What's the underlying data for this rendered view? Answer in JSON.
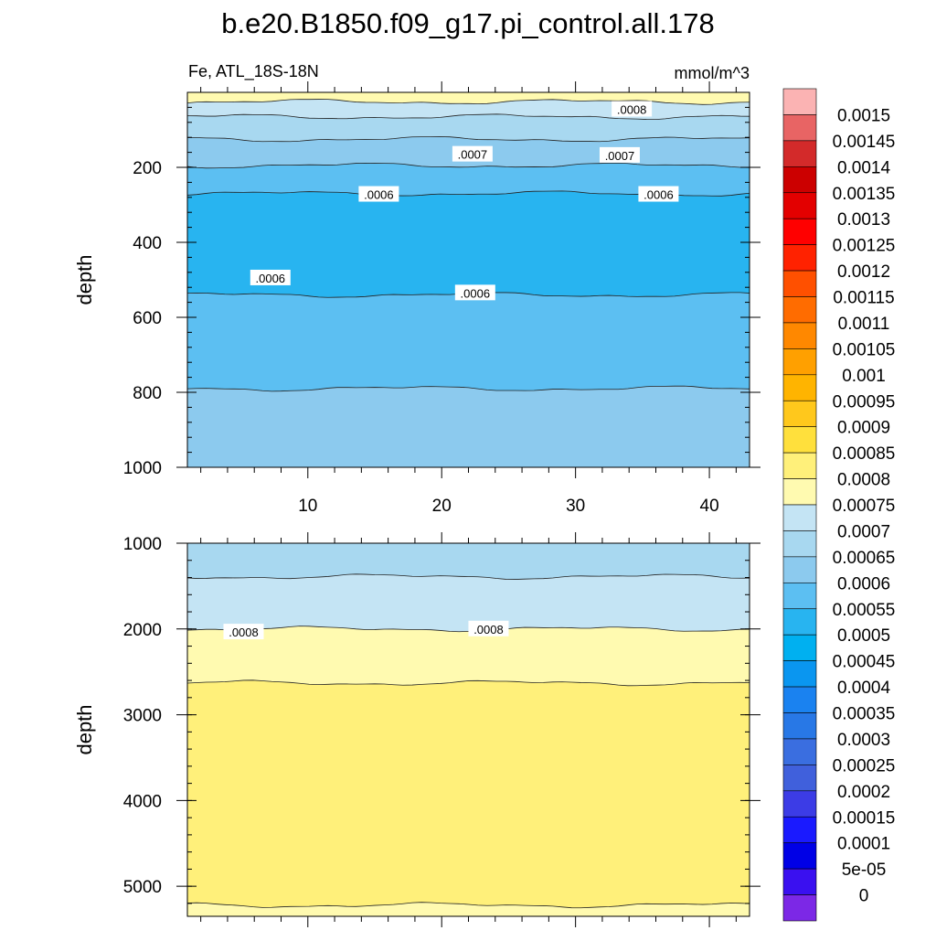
{
  "chart_data": {
    "type": "contour",
    "title": "b.e20.B1850.f09_g17.pi_control.all.178",
    "variable_label": "Fe, ATL_18S-18N",
    "units_label": "mmol/m^3",
    "ylabel": "depth",
    "xlim": [
      1,
      43
    ],
    "x_ticks": [
      10,
      20,
      30,
      40
    ],
    "panels": [
      {
        "name": "upper",
        "ylim": [
          0,
          1000
        ],
        "y_ticks": [
          200,
          400,
          600,
          800,
          1000
        ],
        "bands": [
          {
            "depth_top": 0,
            "depth_bottom": 25,
            "level": 0.0008
          },
          {
            "depth_top": 25,
            "depth_bottom": 65,
            "level": 0.00075
          },
          {
            "depth_top": 65,
            "depth_bottom": 125,
            "level": 0.0007
          },
          {
            "depth_top": 125,
            "depth_bottom": 195,
            "level": 0.00065
          },
          {
            "depth_top": 195,
            "depth_bottom": 270,
            "level": 0.0006
          },
          {
            "depth_top": 270,
            "depth_bottom": 540,
            "level": 0.00055
          },
          {
            "depth_top": 540,
            "depth_bottom": 790,
            "level": 0.0006
          },
          {
            "depth_top": 790,
            "depth_bottom": 1000,
            "level": 0.00065
          }
        ],
        "contour_labels": [
          {
            "text": ".0008",
            "x": 34.2,
            "depth": 45
          },
          {
            "text": ".0007",
            "x": 22.3,
            "depth": 165
          },
          {
            "text": ".0007",
            "x": 33.3,
            "depth": 168
          },
          {
            "text": ".0006",
            "x": 15.3,
            "depth": 272
          },
          {
            "text": ".0006",
            "x": 36.2,
            "depth": 272
          },
          {
            "text": ".0006",
            "x": 7.2,
            "depth": 495
          },
          {
            "text": ".0006",
            "x": 22.5,
            "depth": 535
          }
        ]
      },
      {
        "name": "lower",
        "ylim": [
          1000,
          5350
        ],
        "y_ticks": [
          1000,
          2000,
          3000,
          4000,
          5000
        ],
        "bands": [
          {
            "depth_top": 1000,
            "depth_bottom": 1390,
            "level": 0.0007
          },
          {
            "depth_top": 1390,
            "depth_bottom": 2000,
            "level": 0.00075
          },
          {
            "depth_top": 2000,
            "depth_bottom": 2630,
            "level": 0.0008
          },
          {
            "depth_top": 2630,
            "depth_bottom": 5220,
            "level": 0.00085
          },
          {
            "depth_top": 5220,
            "depth_bottom": 5350,
            "level": 0.0008
          }
        ],
        "contour_labels": [
          {
            "text": ".0008",
            "x": 5.2,
            "depth": 2035
          },
          {
            "text": ".0008",
            "x": 23.5,
            "depth": 2000
          }
        ]
      }
    ],
    "colorbar": {
      "labels": [
        "0.0015",
        "0.00145",
        "0.0014",
        "0.00135",
        "0.0013",
        "0.00125",
        "0.0012",
        "0.00115",
        "0.0011",
        "0.00105",
        "0.001",
        "0.00095",
        "0.0009",
        "0.00085",
        "0.0008",
        "0.00075",
        "0.0007",
        "0.00065",
        "0.0006",
        "0.00055",
        "0.0005",
        "0.00045",
        "0.0004",
        "0.00035",
        "0.0003",
        "0.00025",
        "0.0002",
        "0.00015",
        "0.0001",
        "5e-05",
        "0"
      ],
      "colors": [
        "#fbb3b3",
        "#e86464",
        "#d32a2a",
        "#cc0000",
        "#e30000",
        "#ff0000",
        "#ff2200",
        "#ff5000",
        "#ff6c00",
        "#ff8800",
        "#ffa000",
        "#ffb400",
        "#ffc81c",
        "#ffe03c",
        "#fff07a",
        "#fffab0",
        "#c4e4f4",
        "#a8d8f0",
        "#8ccaee",
        "#5cbff2",
        "#28b4f0",
        "#00b0f0",
        "#0a96f0",
        "#1a82f0",
        "#2878e6",
        "#3a6ee0",
        "#4060dc",
        "#3c3ce6",
        "#1a1aff",
        "#0000e6",
        "#3a10f0",
        "#7c28e6"
      ]
    }
  }
}
